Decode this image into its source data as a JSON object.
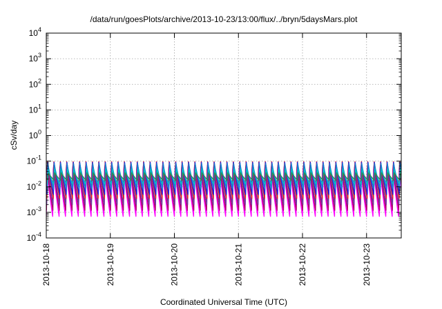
{
  "chart_data": {
    "type": "line",
    "title": "/data/run/goesPlots/archive/2013-10-23/13:00/flux/../bryn/5daysMars.plot",
    "xlabel": "Coordinated Universal Time (UTC)",
    "ylabel": "cSv/day",
    "yscale": "log",
    "ylim": [
      0.0001,
      10000
    ],
    "xlim": [
      "2013-10-18 00:00",
      "2013-10-23 13:00"
    ],
    "grid": true,
    "legend": "none",
    "x_ticks": [
      "2013-10-18",
      "2013-10-19",
      "2013-10-20",
      "2013-10-21",
      "2013-10-22",
      "2013-10-23"
    ],
    "y_ticks": [
      {
        "base": "10",
        "exp": "4"
      },
      {
        "base": "10",
        "exp": "3"
      },
      {
        "base": "10",
        "exp": "2"
      },
      {
        "base": "10",
        "exp": "1"
      },
      {
        "base": "10",
        "exp": "0"
      },
      {
        "base": "10",
        "exp": "-1"
      },
      {
        "base": "10",
        "exp": "-2"
      },
      {
        "base": "10",
        "exp": "-3"
      },
      {
        "base": "10",
        "exp": "-4"
      }
    ],
    "pattern": {
      "sawtooth_cycles_per_day": 10,
      "peak_day_fraction": 0.1
    },
    "series": [
      {
        "color": "#ff00ff",
        "peak": 0.05,
        "trough": 0.0007
      },
      {
        "color": "#b0006a",
        "peak": 0.06,
        "trough": 0.0012
      },
      {
        "color": "#7030a0",
        "peak": 0.07,
        "trough": 0.002
      },
      {
        "color": "#e02020",
        "peak": 0.095,
        "trough": 0.0035
      },
      {
        "color": "#2020e0",
        "peak": 0.09,
        "trough": 0.005
      },
      {
        "color": "#1a7fd0",
        "peak": 0.08,
        "trough": 0.008
      },
      {
        "color": "#00c0c0",
        "peak": 0.05,
        "trough": 0.012
      },
      {
        "color": "#2e8b57",
        "peak": 0.035,
        "trough": 0.018
      }
    ]
  }
}
